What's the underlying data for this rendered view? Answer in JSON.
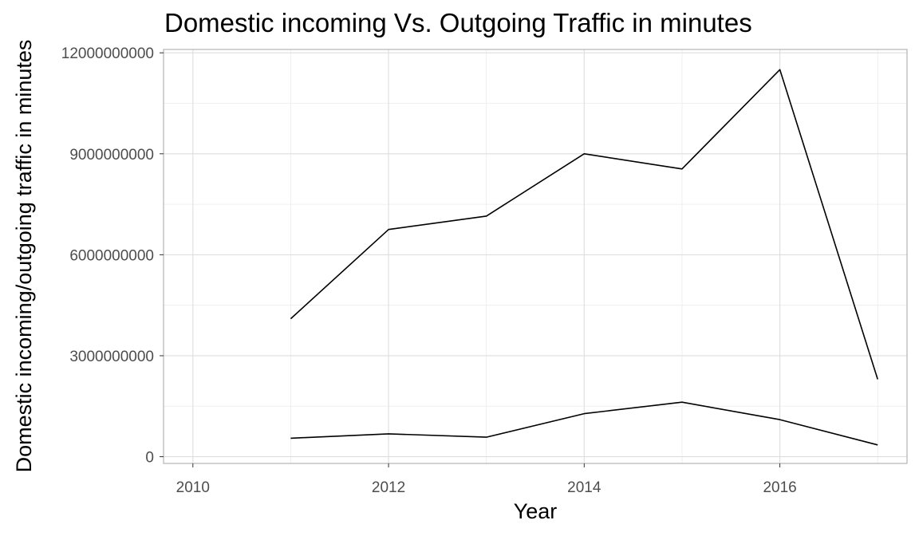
{
  "chart_data": {
    "type": "line",
    "title": "Domestic incoming Vs. Outgoing Traffic in minutes",
    "xlabel": "Year",
    "ylabel": "Domestic incoming/outgoing traffic in minutes",
    "x_ticks": [
      "2010",
      "2012",
      "2014",
      "2016"
    ],
    "y_ticks": [
      "0",
      "3000000000",
      "6000000000",
      "9000000000",
      "12000000000"
    ],
    "xlim": [
      2009.7,
      2017.3
    ],
    "ylim": [
      -200000000,
      12100000000
    ],
    "grid": true,
    "legend": "none",
    "line_color": "#000000",
    "series": [
      {
        "x": [
          2011,
          2012,
          2013,
          2014,
          2015,
          2016,
          2017
        ],
        "values": [
          4100000000,
          6750000000,
          7150000000,
          9000000000,
          8550000000,
          11500000000,
          2300000000
        ]
      },
      {
        "x": [
          2011,
          2012,
          2013,
          2014,
          2015,
          2016,
          2017
        ],
        "values": [
          550000000,
          680000000,
          580000000,
          1280000000,
          1620000000,
          1100000000,
          350000000
        ]
      }
    ]
  }
}
